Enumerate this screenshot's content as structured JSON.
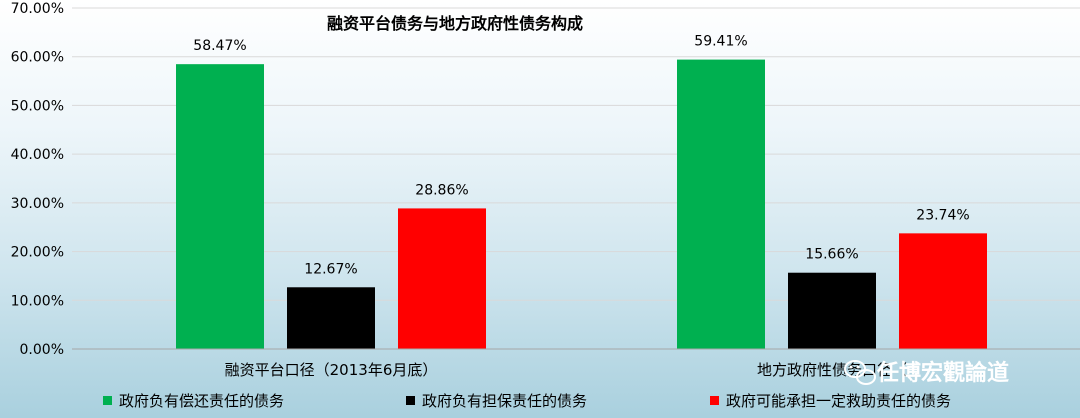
{
  "chart_data": {
    "type": "bar",
    "title": "融资平台债务与地方政府性债务构成",
    "categories": [
      "融资平台口径（2013年6月底）",
      "地方政府性债务口径（"
    ],
    "series": [
      {
        "name": "政府负有偿还责任的债务",
        "values": [
          58.47,
          59.41
        ],
        "labels": [
          "58.47%",
          "59.41%"
        ],
        "color": "#00b050"
      },
      {
        "name": "政府负有担保责任的债务",
        "values": [
          12.67,
          15.66
        ],
        "labels": [
          "12.67%",
          "15.66%"
        ],
        "color": "#000000"
      },
      {
        "name": "政府可能承担一定救助责任的债务",
        "values": [
          28.86,
          23.74
        ],
        "labels": [
          "28.86%",
          "23.74%"
        ],
        "color": "#ff0000"
      }
    ],
    "ylim": [
      0,
      70
    ],
    "yticks": [
      "0.00%",
      "10.00%",
      "20.00%",
      "30.00%",
      "40.00%",
      "50.00%",
      "60.00%",
      "70.00%"
    ],
    "grid": true,
    "legend_position": "bottom"
  },
  "watermark": {
    "icon": "wechat-icon",
    "text": "任博宏觀論道"
  }
}
